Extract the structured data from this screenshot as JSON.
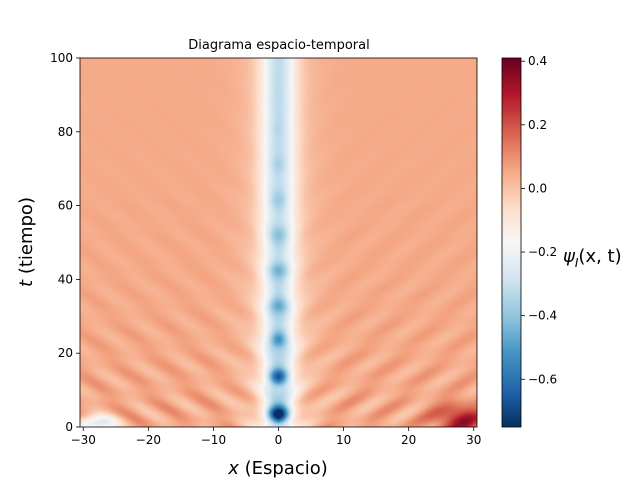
{
  "chart_data": {
    "type": "heatmap",
    "title": "Diagrama espacio-temporal",
    "xlabel": {
      "symbol": "x",
      "text": " (Espacio)"
    },
    "ylabel": {
      "symbol": "t",
      "text": " (tiempo)"
    },
    "xlim": [
      -30.5,
      30.5
    ],
    "ylim": [
      0,
      100
    ],
    "xticks": [
      -30,
      -20,
      -10,
      0,
      10,
      20,
      30
    ],
    "xtick_labels": [
      "−30",
      "−20",
      "−10",
      "0",
      "10",
      "20",
      "30"
    ],
    "yticks": [
      0,
      20,
      40,
      60,
      80,
      100
    ],
    "ytick_labels": [
      "0",
      "20",
      "40",
      "60",
      "80",
      "100"
    ],
    "colorbar": {
      "colormap": "RdBu_r",
      "range": [
        -0.75,
        0.41
      ],
      "ticks": [
        -0.6,
        -0.4,
        -0.2,
        0.0,
        0.2,
        0.4
      ],
      "tick_labels": [
        "−0.6",
        "−0.4",
        "−0.2",
        "0.0",
        "0.2",
        "0.4"
      ],
      "label": "ψ_I(x, t)",
      "label_main": "ψ",
      "label_sub": "I",
      "label_args": "(x, t)"
    },
    "features": {
      "background_value": 0.05,
      "central_channel": {
        "x_center": 0,
        "half_width": 2.5,
        "value": -0.25
      },
      "bright_spots": [
        {
          "x": 0,
          "t": 3.5,
          "value": -0.75
        },
        {
          "x": 0,
          "t": 13.5,
          "value": -0.6
        },
        {
          "x": 0,
          "t": 23.5,
          "value": -0.48
        },
        {
          "x": 0,
          "t": 33,
          "value": -0.42
        },
        {
          "x": 0,
          "t": 42.5,
          "value": -0.38
        },
        {
          "x": 0,
          "t": 52,
          "value": -0.34
        },
        {
          "x": 0,
          "t": 61.5,
          "value": -0.31
        },
        {
          "x": 0,
          "t": 71,
          "value": -0.29
        },
        {
          "x": 0,
          "t": 80.5,
          "value": -0.27
        },
        {
          "x": 0,
          "t": 90,
          "value": -0.26
        }
      ],
      "corner_hotspot": {
        "x": 28,
        "t": 2,
        "value": 0.3
      },
      "corner_cold": {
        "x": -28,
        "t": 1,
        "value": -0.3
      }
    },
    "grid": false,
    "legend": "none"
  }
}
